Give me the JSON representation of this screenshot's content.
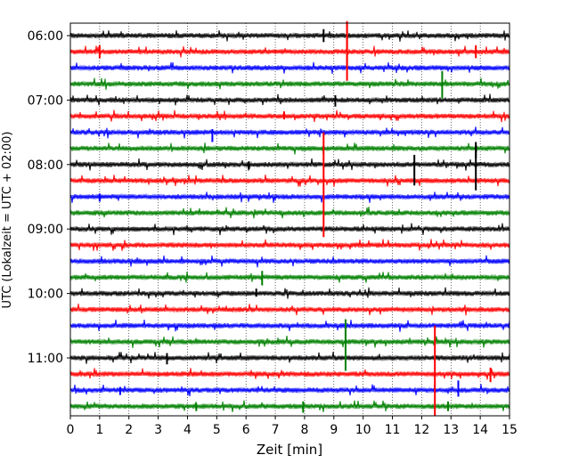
{
  "chart_data": {
    "type": "line",
    "subtype": "helicorder",
    "xlabel": "Zeit  [min]",
    "ylabel": "UTC (Lokalzeit = UTC + 02:00)",
    "x_ticks": [
      0,
      1,
      2,
      3,
      4,
      5,
      6,
      7,
      8,
      9,
      10,
      11,
      12,
      13,
      14,
      15
    ],
    "xlim": [
      0,
      15
    ],
    "time_labels": [
      {
        "text": "06:00",
        "row": 0
      },
      {
        "text": "07:00",
        "row": 4
      },
      {
        "text": "08:00",
        "row": 8
      },
      {
        "text": "09:00",
        "row": 12
      },
      {
        "text": "10:00",
        "row": 16
      },
      {
        "text": "11:00",
        "row": 20
      }
    ],
    "row_count": 24,
    "row_interval_min": 15,
    "grid": {
      "x": true,
      "y": false,
      "style": "dotted"
    },
    "trace_colors": [
      "#000000",
      "#ff0000",
      "#0000ff",
      "#008000"
    ],
    "events": [
      {
        "row": 0,
        "x": 9.45,
        "up": 0.9,
        "down": 2.0,
        "color": "#ff0000"
      },
      {
        "row": 1,
        "x": 9.45,
        "up": 1.7,
        "down": 1.8,
        "color": "#ff0000"
      },
      {
        "row": 0,
        "x": 8.65,
        "up": 0.4,
        "down": 0.4,
        "color": "#000000"
      },
      {
        "row": 1,
        "x": 1.0,
        "up": 0.4,
        "down": 0.4,
        "color": "#ff0000"
      },
      {
        "row": 1,
        "x": 13.85,
        "up": 0.4,
        "down": 0.4,
        "color": "#ff0000"
      },
      {
        "row": 3,
        "x": 12.7,
        "up": 0.8,
        "down": 0.9,
        "color": "#008000"
      },
      {
        "row": 4,
        "x": 9.05,
        "up": 0.3,
        "down": 0.4,
        "color": "#000000"
      },
      {
        "row": 5,
        "x": 7.3,
        "up": 0.3,
        "down": 0.2,
        "color": "#ff0000"
      },
      {
        "row": 6,
        "x": 4.85,
        "up": 0.2,
        "down": 0.6,
        "color": "#0000ff"
      },
      {
        "row": 6,
        "x": 8.65,
        "up": 0.0,
        "down": 6.5,
        "color": "#ff0000"
      },
      {
        "row": 7,
        "x": 13.85,
        "up": 0.2,
        "down": 0.6,
        "color": "#000000"
      },
      {
        "row": 8,
        "x": 11.75,
        "up": 0.6,
        "down": 1.3,
        "color": "#000000"
      },
      {
        "row": 8,
        "x": 13.85,
        "up": 1.4,
        "down": 1.6,
        "color": "#000000"
      },
      {
        "row": 8,
        "x": 6.1,
        "up": 0.2,
        "down": 0.3,
        "color": "#000000"
      },
      {
        "row": 10,
        "x": 1.0,
        "up": 0.2,
        "down": 0.3,
        "color": "#0000ff"
      },
      {
        "row": 15,
        "x": 6.55,
        "up": 0.4,
        "down": 0.5,
        "color": "#008000"
      },
      {
        "row": 16,
        "x": 6.35,
        "up": 0.3,
        "down": 0.2,
        "color": "#000000"
      },
      {
        "row": 18,
        "x": 9.4,
        "up": 0.4,
        "down": 1.0,
        "color": "#008000"
      },
      {
        "row": 19,
        "x": 9.4,
        "up": 0.7,
        "down": 1.8,
        "color": "#008000"
      },
      {
        "row": 18,
        "x": 12.45,
        "up": 0.0,
        "down": 5.8,
        "color": "#ff0000"
      },
      {
        "row": 20,
        "x": 3.3,
        "up": 0.3,
        "down": 0.4,
        "color": "#000000"
      },
      {
        "row": 21,
        "x": 14.35,
        "up": 0.4,
        "down": 0.5,
        "color": "#ff0000"
      },
      {
        "row": 22,
        "x": 13.25,
        "up": 0.6,
        "down": 0.4,
        "color": "#0000ff"
      },
      {
        "row": 22,
        "x": 1.7,
        "up": 0.2,
        "down": 0.3,
        "color": "#0000ff"
      },
      {
        "row": 23,
        "x": 7.95,
        "up": 0.3,
        "down": 0.4,
        "color": "#008000"
      },
      {
        "row": 23,
        "x": 12.9,
        "up": 0.3,
        "down": 0.3,
        "color": "#008000"
      },
      {
        "row": 23,
        "x": 4.3,
        "up": 0.2,
        "down": 0.3,
        "color": "#008000"
      }
    ]
  }
}
